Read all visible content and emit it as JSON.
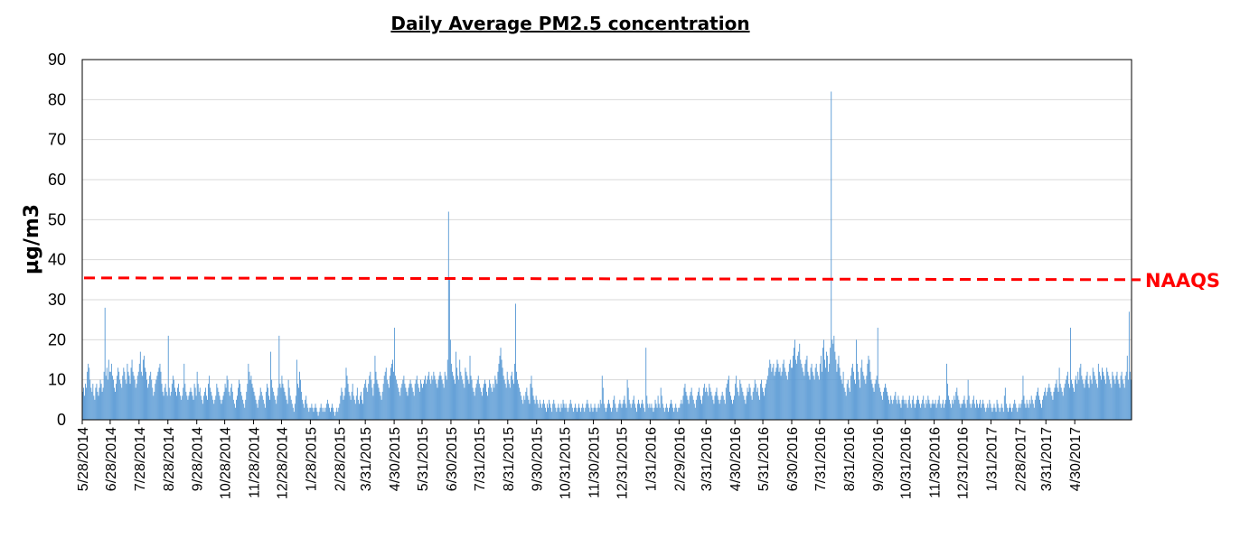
{
  "chart_data": {
    "type": "bar",
    "title": "Daily Average PM2.5 concentration",
    "xlabel": "",
    "ylabel": "µg/m3",
    "ylim": [
      0,
      90
    ],
    "yticks": [
      0,
      10,
      20,
      30,
      40,
      50,
      60,
      70,
      80,
      90
    ],
    "grid": true,
    "legend": "none",
    "bar_color": "#5b9bd5",
    "x_start": "5/28/2014",
    "x_end": "5/31/2017",
    "x_tick_labels": [
      "5/28/2014",
      "6/28/2014",
      "7/28/2014",
      "8/28/2014",
      "9/28/2014",
      "10/28/2014",
      "11/28/2014",
      "12/28/2014",
      "1/28/2015",
      "2/28/2015",
      "3/31/2015",
      "4/30/2015",
      "5/31/2015",
      "6/30/2015",
      "7/31/2015",
      "8/31/2015",
      "9/30/2015",
      "10/31/2015",
      "11/30/2015",
      "12/31/2015",
      "1/31/2016",
      "2/29/2016",
      "3/31/2016",
      "4/30/2016",
      "5/31/2016",
      "6/30/2016",
      "7/31/2016",
      "8/31/2016",
      "9/30/2016",
      "10/31/2016",
      "11/30/2016",
      "12/31/2016",
      "1/31/2017",
      "2/28/2017",
      "3/31/2017",
      "4/30/2017"
    ],
    "series": [
      {
        "monthly_values": [
          [
            7,
            8,
            6,
            9,
            8,
            12,
            14,
            13,
            10,
            8,
            7,
            9,
            6,
            5,
            8,
            9,
            7,
            6,
            8,
            10,
            9,
            7,
            8,
            12,
            28,
            11,
            13,
            10,
            15,
            12
          ],
          [
            12,
            14,
            11,
            10,
            8,
            7,
            9,
            11,
            13,
            12,
            10,
            9,
            8,
            11,
            13,
            12,
            10,
            9,
            14,
            12,
            11,
            9,
            13,
            15,
            12,
            11,
            10,
            8,
            9,
            11,
            12
          ],
          [
            14,
            17,
            12,
            11,
            15,
            16,
            13,
            12,
            10,
            8,
            9,
            11,
            12,
            10,
            8,
            6,
            7,
            9,
            10,
            11,
            12,
            13,
            14,
            12,
            9,
            7,
            6,
            8,
            9,
            7,
            6
          ],
          [
            21,
            8,
            6,
            7,
            9,
            11,
            10,
            8,
            7,
            6,
            8,
            9,
            7,
            6,
            5,
            6,
            8,
            14,
            9,
            7,
            6,
            5,
            6,
            7,
            8,
            7,
            6,
            5,
            9,
            8,
            6
          ],
          [
            12,
            9,
            7,
            8,
            6,
            5,
            4,
            6,
            7,
            8,
            6,
            5,
            9,
            11,
            8,
            7,
            6,
            5,
            4,
            5,
            6,
            9,
            8,
            7,
            6,
            5,
            4,
            5,
            6,
            7
          ],
          [
            9,
            8,
            11,
            10,
            7,
            6,
            8,
            9,
            7,
            5,
            4,
            3,
            5,
            6,
            8,
            10,
            9,
            7,
            6,
            5,
            4,
            3,
            5,
            7,
            9,
            14,
            12,
            10,
            11,
            9,
            8
          ],
          [
            7,
            6,
            5,
            4,
            3,
            5,
            6,
            8,
            7,
            6,
            5,
            4,
            3,
            7,
            9,
            8,
            6,
            5,
            17,
            10,
            8,
            7,
            6,
            5,
            4,
            6,
            8,
            21,
            9,
            8
          ],
          [
            11,
            9,
            8,
            7,
            6,
            5,
            4,
            10,
            8,
            6,
            5,
            4,
            3,
            2,
            4,
            6,
            15,
            9,
            8,
            12,
            10,
            7,
            5,
            4,
            3,
            5,
            6,
            4,
            3,
            2,
            3
          ],
          [
            3,
            4,
            3,
            2,
            3,
            4,
            3,
            2,
            1,
            2,
            3,
            4,
            3,
            2,
            3,
            2,
            3,
            4,
            5,
            4,
            3,
            2,
            3,
            4,
            3,
            2,
            1,
            2,
            3,
            2,
            3
          ],
          [
            4,
            6,
            8,
            7,
            5,
            6,
            8,
            13,
            11,
            9,
            7,
            6,
            5,
            7,
            9,
            6,
            5,
            4,
            6,
            8,
            5,
            4,
            6,
            7,
            5,
            4,
            8,
            9
          ],
          [
            10,
            8,
            7,
            9,
            11,
            12,
            10,
            8,
            6,
            9,
            16,
            12,
            10,
            9,
            8,
            7,
            6,
            5,
            7,
            9,
            11,
            12,
            13,
            10,
            9,
            8,
            11,
            13,
            14,
            15,
            12
          ],
          [
            23,
            11,
            10,
            9,
            8,
            7,
            6,
            8,
            9,
            10,
            11,
            9,
            8,
            7,
            6,
            8,
            9,
            10,
            9,
            8,
            7,
            6,
            9,
            10,
            11,
            9,
            8,
            7,
            10,
            9
          ],
          [
            8,
            9,
            10,
            11,
            9,
            10,
            11,
            12,
            10,
            9,
            11,
            10,
            12,
            11,
            10,
            9,
            8,
            10,
            11,
            12,
            11,
            10,
            9,
            8,
            12,
            11,
            10,
            15,
            52,
            35,
            20
          ],
          [
            14,
            12,
            11,
            10,
            9,
            17,
            13,
            11,
            10,
            15,
            12,
            11,
            10,
            9,
            8,
            13,
            12,
            11,
            10,
            9,
            16,
            11,
            10,
            8,
            7,
            6,
            8,
            9,
            10,
            11
          ],
          [
            9,
            8,
            7,
            6,
            8,
            9,
            10,
            9,
            7,
            6,
            8,
            10,
            9,
            8,
            7,
            9,
            8,
            11,
            10,
            9,
            12,
            14,
            16,
            18,
            15,
            13,
            11,
            10,
            9,
            8,
            12
          ],
          [
            10,
            9,
            8,
            11,
            12,
            10,
            9,
            14,
            29,
            12,
            10,
            9,
            8,
            7,
            6,
            5,
            4,
            6,
            5,
            7,
            8,
            6,
            5,
            4,
            9,
            11,
            8,
            6,
            5,
            4,
            6
          ],
          [
            5,
            4,
            3,
            5,
            4,
            3,
            4,
            5,
            4,
            3,
            2,
            4,
            3,
            5,
            4,
            3,
            2,
            4,
            5,
            4,
            3,
            2,
            3,
            4,
            3,
            2,
            4,
            3,
            5,
            4
          ],
          [
            3,
            4,
            3,
            2,
            3,
            4,
            5,
            4,
            3,
            2,
            3,
            4,
            3,
            2,
            3,
            4,
            3,
            2,
            3,
            4,
            3,
            2,
            3,
            4,
            5,
            4,
            3,
            2,
            4,
            3,
            2
          ],
          [
            3,
            4,
            3,
            2,
            3,
            4,
            3,
            5,
            4,
            11,
            8,
            4,
            3,
            2,
            3,
            4,
            5,
            4,
            3,
            2,
            3,
            5,
            6,
            4,
            3,
            2,
            3,
            4,
            5,
            4
          ],
          [
            3,
            4,
            5,
            6,
            4,
            3,
            10,
            8,
            5,
            4,
            3,
            4,
            5,
            6,
            4,
            3,
            2,
            4,
            5,
            4,
            3,
            4,
            5,
            4,
            3,
            2,
            18,
            6,
            4,
            3,
            4
          ],
          [
            3,
            4,
            3,
            2,
            3,
            5,
            4,
            3,
            6,
            4,
            3,
            8,
            6,
            4,
            3,
            2,
            3,
            4,
            3,
            2,
            3,
            4,
            5,
            4,
            3,
            2,
            3,
            4,
            3,
            2,
            3
          ],
          [
            3,
            4,
            5,
            4,
            6,
            8,
            9,
            7,
            6,
            5,
            4,
            6,
            7,
            8,
            6,
            5,
            4,
            3,
            5,
            6,
            7,
            8,
            6,
            5,
            4,
            6,
            8,
            9,
            7
          ],
          [
            8,
            7,
            6,
            9,
            8,
            7,
            6,
            5,
            4,
            6,
            7,
            8,
            6,
            5,
            4,
            5,
            6,
            7,
            6,
            5,
            4,
            8,
            9,
            10,
            11,
            7,
            6,
            5,
            4,
            5,
            6
          ],
          [
            9,
            11,
            8,
            7,
            6,
            10,
            9,
            8,
            7,
            6,
            5,
            4,
            6,
            8,
            7,
            9,
            8,
            6,
            5,
            7,
            8,
            10,
            9,
            7,
            8,
            6,
            5,
            9,
            10,
            8
          ],
          [
            7,
            6,
            8,
            9,
            10,
            11,
            13,
            15,
            14,
            12,
            13,
            14,
            11,
            12,
            13,
            15,
            14,
            12,
            13,
            11,
            12,
            14,
            15,
            13,
            12,
            11,
            10,
            12,
            14,
            15,
            13
          ],
          [
            13,
            16,
            18,
            20,
            15,
            14,
            16,
            17,
            19,
            15,
            14,
            13,
            12,
            11,
            14,
            15,
            16,
            12,
            11,
            10,
            13,
            14,
            12,
            11,
            10,
            13,
            14,
            12,
            11,
            10
          ],
          [
            14,
            16,
            12,
            18,
            20,
            15,
            13,
            17,
            16,
            12,
            14,
            18,
            82,
            20,
            19,
            21,
            17,
            15,
            12,
            14,
            16,
            13,
            11,
            10,
            9,
            12,
            8,
            7,
            6,
            9,
            10
          ],
          [
            8,
            7,
            11,
            13,
            14,
            12,
            10,
            9,
            20,
            14,
            12,
            10,
            8,
            13,
            15,
            12,
            11,
            10,
            9,
            11,
            14,
            16,
            15,
            12,
            10,
            9,
            8,
            7,
            9,
            10,
            11
          ],
          [
            23,
            9,
            8,
            7,
            6,
            5,
            7,
            8,
            9,
            8,
            7,
            6,
            5,
            4,
            6,
            5,
            4,
            5,
            6,
            7,
            5,
            4,
            6,
            5,
            4,
            3,
            5,
            6,
            5,
            4
          ],
          [
            5,
            4,
            3,
            5,
            6,
            4,
            3,
            5,
            6,
            4,
            3,
            4,
            5,
            6,
            5,
            4,
            3,
            4,
            5,
            6,
            4,
            3,
            5,
            4,
            6,
            5,
            4,
            3,
            4,
            5,
            4
          ],
          [
            4,
            5,
            3,
            4,
            5,
            6,
            4,
            3,
            4,
            5,
            3,
            4,
            5,
            14,
            9,
            6,
            5,
            4,
            3,
            5,
            4,
            6,
            5,
            7,
            8,
            6,
            5,
            4,
            3,
            4
          ],
          [
            4,
            5,
            6,
            4,
            3,
            5,
            10,
            6,
            4,
            3,
            4,
            5,
            6,
            4,
            3,
            5,
            4,
            3,
            4,
            5,
            3,
            4,
            5,
            4,
            3,
            2,
            3,
            4,
            3,
            5,
            4
          ],
          [
            3,
            2,
            3,
            4,
            3,
            2,
            5,
            4,
            3,
            2,
            3,
            4,
            3,
            2,
            6,
            8,
            4,
            3,
            2,
            3,
            4,
            3,
            2,
            3,
            4,
            5,
            4,
            3,
            2,
            3,
            4
          ],
          [
            3,
            4,
            5,
            11,
            6,
            4,
            3,
            5,
            4,
            3,
            5,
            4,
            6,
            5,
            4,
            3,
            5,
            6,
            7,
            8,
            6,
            5,
            4,
            3,
            5,
            6,
            7,
            8
          ],
          [
            6,
            7,
            8,
            9,
            8,
            7,
            6,
            5,
            7,
            8,
            9,
            10,
            8,
            7,
            13,
            9,
            8,
            7,
            6,
            8,
            9,
            10,
            11,
            12,
            9,
            8,
            23,
            10,
            9,
            8,
            7
          ],
          [
            10,
            11,
            9,
            12,
            10,
            13,
            14,
            11,
            10,
            9,
            8,
            10,
            11,
            12,
            9,
            8,
            11,
            10,
            9,
            13,
            12,
            11,
            10,
            9,
            8,
            14,
            12,
            11,
            10,
            13
          ],
          [
            12,
            11,
            10,
            9,
            13,
            12,
            11,
            10,
            9,
            8,
            12,
            11,
            10,
            9,
            11,
            12,
            10,
            9,
            8,
            11,
            12,
            10,
            9,
            8,
            11,
            12,
            16,
            10,
            27,
            12,
            10
          ]
        ]
      }
    ],
    "reference_line": {
      "label": "NAAQS",
      "value": 35,
      "color": "#ff0000",
      "style": "dashed"
    }
  }
}
